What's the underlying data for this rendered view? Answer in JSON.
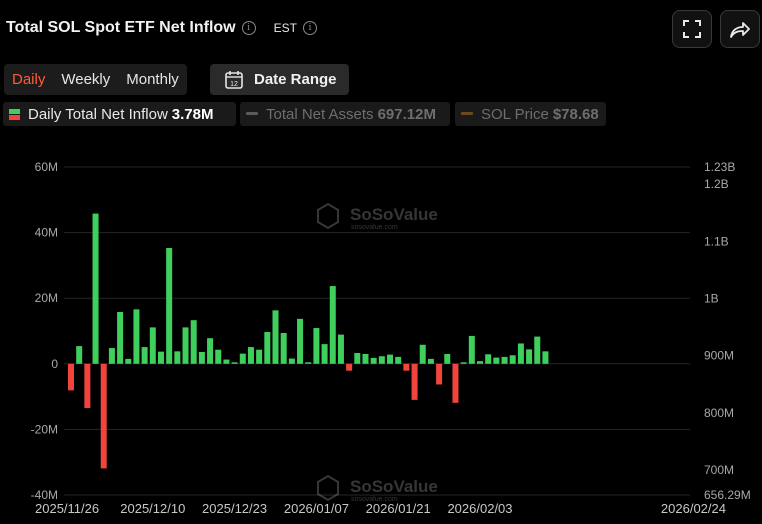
{
  "header": {
    "title": "Total SOL Spot ETF Net Inflow",
    "timezone": "EST"
  },
  "tabs": [
    {
      "label": "Daily",
      "active": true
    },
    {
      "label": "Weekly",
      "active": false
    },
    {
      "label": "Monthly",
      "active": false
    }
  ],
  "date_range": {
    "label": "Date Range",
    "icon_text": "12"
  },
  "legend": [
    {
      "name": "Daily Total Net Inflow",
      "value": "3.78M",
      "active": true
    },
    {
      "name": "Total Net Assets",
      "value": "697.12M",
      "active": false
    },
    {
      "name": "SOL Price",
      "value": "$78.68",
      "active": false
    }
  ],
  "watermark": {
    "brand": "SoSoValue",
    "url": "sosovalue.com"
  },
  "colors": {
    "positive": "#3ecf5c",
    "negative": "#f0443c",
    "background": "#000000",
    "accent": "#ff5a3c"
  },
  "chart_data": {
    "type": "bar",
    "title": "Total SOL Spot ETF Net Inflow",
    "x_tick_labels": [
      "2025/11/26",
      "2025/12/10",
      "2025/12/23",
      "2026/01/07",
      "2026/01/21",
      "2026/02/03",
      "2026/02/24"
    ],
    "x_tick_indices": [
      0,
      10,
      20,
      30,
      40,
      50,
      62
    ],
    "left_axis": {
      "ticks": [
        "60M",
        "40M",
        "20M",
        "0",
        "-20M",
        "-40M"
      ],
      "tick_values": [
        60,
        40,
        20,
        0,
        -20,
        -40
      ],
      "ylim": [
        -40,
        60
      ],
      "unit": "M"
    },
    "right_axis": {
      "ticks": [
        "1.23B",
        "1.2B",
        "1.1B",
        "1B",
        "900M",
        "800M",
        "700M",
        "656.29M"
      ],
      "tick_values": [
        1230,
        1200,
        1100,
        1000,
        900,
        800,
        700,
        656.29
      ],
      "ylim": [
        656.29,
        1230
      ],
      "unit": "M"
    },
    "grid": true,
    "series": [
      {
        "name": "Daily Total Net Inflow",
        "values": [
          -8.1,
          5.4,
          -13.5,
          45.8,
          -31.9,
          4.8,
          15.8,
          1.5,
          16.6,
          5.1,
          11.1,
          3.7,
          35.3,
          3.8,
          11.1,
          13.3,
          3.6,
          7.8,
          4.3,
          1.3,
          0.3,
          3.1,
          5.1,
          4.3,
          9.7,
          16.3,
          9.4,
          1.6,
          13.7,
          0.4,
          10.9,
          6.0,
          23.7,
          8.9,
          -2.1,
          3.3,
          3.0,
          1.8,
          2.3,
          2.8,
          2.1,
          -2.1,
          -11.0,
          5.8,
          1.5,
          -6.3,
          3.0,
          -11.9,
          0.4,
          8.5,
          0.8,
          2.9,
          1.9,
          2.1,
          2.6,
          6.2,
          4.4,
          8.3,
          3.8
        ]
      }
    ]
  }
}
